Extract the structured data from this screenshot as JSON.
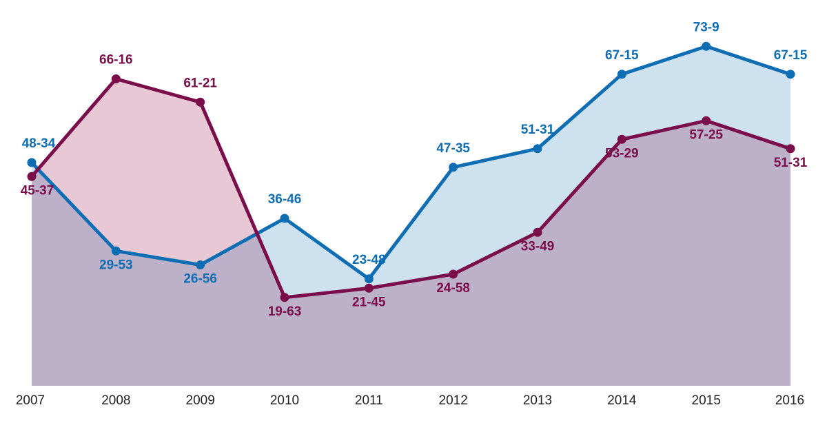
{
  "chart_data": {
    "type": "line",
    "title": "",
    "xlabel": "",
    "ylabel": "",
    "categories": [
      "2007",
      "2008",
      "2009",
      "2010",
      "2011",
      "2012",
      "2013",
      "2014",
      "2015",
      "2016"
    ],
    "ylim": [
      0,
      80
    ],
    "grid": false,
    "legend": "none",
    "series": [
      {
        "color": "#0f6db3",
        "fill": "#cde1ef",
        "values": [
          48,
          29,
          26,
          36,
          23,
          47,
          51,
          67,
          73,
          67
        ],
        "labels": [
          "48-34",
          "29-53",
          "26-56",
          "36-46",
          "23-48",
          "47-35",
          "51-31",
          "67-15",
          "73-9",
          "67-15"
        ]
      },
      {
        "color": "#7a0e4b",
        "fill": "#e8c8d5",
        "values": [
          45,
          66,
          61,
          19,
          21,
          24,
          33,
          53,
          57,
          51
        ],
        "labels": [
          "45-37",
          "66-16",
          "61-21",
          "19-63",
          "21-45",
          "24-58",
          "33-49",
          "53-29",
          "57-25",
          "51-31"
        ]
      }
    ],
    "overlap_fill": "#bcb1c9"
  }
}
